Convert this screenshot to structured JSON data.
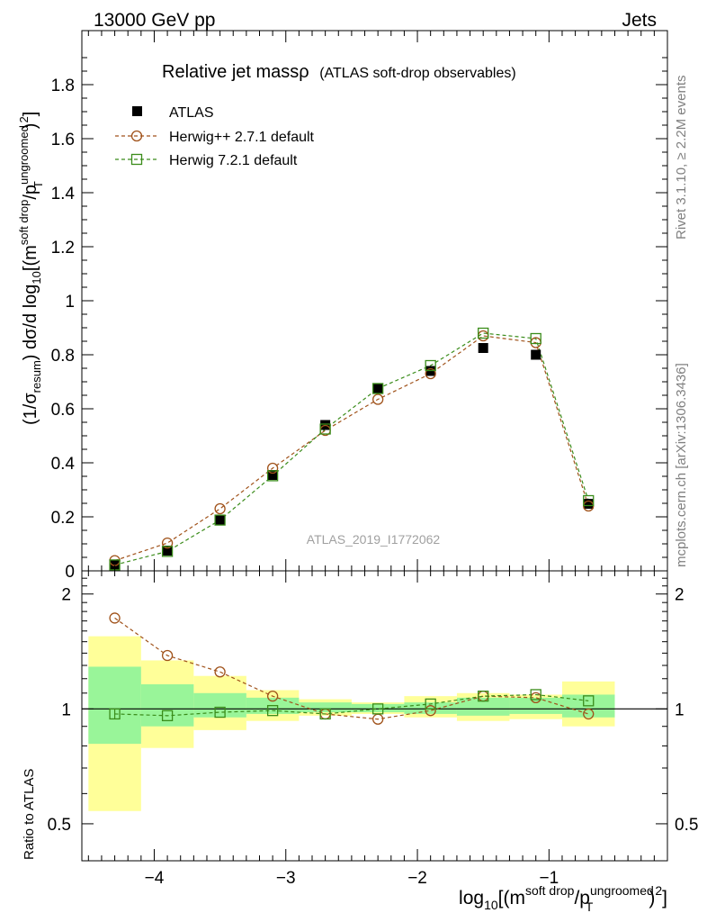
{
  "header": {
    "left": "13000 GeV pp",
    "right": "Jets"
  },
  "side_labels": {
    "rivet": "Rivet 3.1.10, ≥ 2.2M events",
    "mcplots": "mcplots.cern.ch [arXiv:1306.3436]"
  },
  "chart_data": [
    {
      "type": "scatter",
      "title": "Relative jet massρ",
      "subtitle": "(ATLAS soft-drop observables)",
      "watermark": "ATLAS_2019_I1772062",
      "ylabel": {
        "prefix": "(1/σ",
        "prefix_sub": "resum",
        "middle": ") dσ/d log",
        "log_sub": "10",
        "open": "[(m",
        "sup1": "soft drop",
        "slash": "/p",
        "sup2": "ungroomed",
        "sub2": "T",
        "close": ")",
        "exp": "2",
        "end": "]"
      },
      "ylim": [
        0,
        2
      ],
      "yticks": [
        {
          "v": 0,
          "label": "0"
        },
        {
          "v": 0.2,
          "label": "0.2"
        },
        {
          "v": 0.4,
          "label": "0.4"
        },
        {
          "v": 0.6,
          "label": "0.6"
        },
        {
          "v": 0.8,
          "label": "0.8"
        },
        {
          "v": 1,
          "label": "1"
        },
        {
          "v": 1.2,
          "label": "1.2"
        },
        {
          "v": 1.4,
          "label": "1.4"
        },
        {
          "v": 1.6,
          "label": "1.6"
        },
        {
          "v": 1.8,
          "label": "1.8"
        }
      ],
      "x": [
        -4.3,
        -3.9,
        -3.5,
        -3.1,
        -2.7,
        -2.3,
        -1.9,
        -1.5,
        -1.1,
        -0.7
      ],
      "series": [
        {
          "name": "ATLAS",
          "marker": "filled-square",
          "color": "#000000",
          "values": [
            0.022,
            0.075,
            0.19,
            0.355,
            0.54,
            0.675,
            0.74,
            0.825,
            0.8,
            0.248
          ]
        },
        {
          "name": "Herwig++ 2.7.1 default",
          "marker": "open-circle",
          "color": "#a0521a",
          "values": [
            0.038,
            0.103,
            0.23,
            0.38,
            0.52,
            0.635,
            0.73,
            0.87,
            0.845,
            0.24
          ]
        },
        {
          "name": "Herwig 7.2.1 default",
          "marker": "open-square",
          "color": "#3a8c1a",
          "values": [
            0.022,
            0.072,
            0.188,
            0.352,
            0.525,
            0.675,
            0.76,
            0.88,
            0.86,
            0.26
          ]
        }
      ]
    },
    {
      "type": "scatter",
      "ylabel": "Ratio to ATLAS",
      "xlabel": {
        "prefix": "log",
        "log_sub": "10",
        "open": "[(m",
        "sup1": "soft drop",
        "slash": "/p",
        "sup2": "ungroomed",
        "sub2": "T",
        "close": ")",
        "exp": "2",
        "end": "]"
      },
      "ylim": [
        0.4,
        2.3
      ],
      "yticks": [
        {
          "v": 0.5,
          "label": "0.5"
        },
        {
          "v": 1,
          "label": "1"
        },
        {
          "v": 2,
          "label": "2"
        }
      ],
      "xlim": [
        -4.55,
        -0.1
      ],
      "xticks": [
        {
          "v": -4,
          "label": "−4"
        },
        {
          "v": -3,
          "label": "−3"
        },
        {
          "v": -2,
          "label": "−2"
        },
        {
          "v": -1,
          "label": "−1"
        }
      ],
      "bin_edges": [
        -4.5,
        -4.1,
        -3.7,
        -3.3,
        -2.9,
        -2.5,
        -2.1,
        -1.7,
        -1.3,
        -0.9,
        -0.5
      ],
      "band_yellow": [
        [
          0.54,
          1.55
        ],
        [
          0.79,
          1.34
        ],
        [
          0.88,
          1.22
        ],
        [
          0.93,
          1.12
        ],
        [
          0.96,
          1.06
        ],
        [
          0.97,
          1.04
        ],
        [
          0.95,
          1.08
        ],
        [
          0.93,
          1.1
        ],
        [
          0.94,
          1.09
        ],
        [
          0.9,
          1.18
        ]
      ],
      "band_green": [
        [
          0.81,
          1.29
        ],
        [
          0.9,
          1.16
        ],
        [
          0.95,
          1.1
        ],
        [
          0.97,
          1.07
        ],
        [
          0.98,
          1.04
        ],
        [
          0.98,
          1.03
        ],
        [
          0.97,
          1.04
        ],
        [
          0.96,
          1.07
        ],
        [
          0.97,
          1.07
        ],
        [
          0.95,
          1.09
        ]
      ],
      "series": [
        {
          "name": "ATLAS",
          "values": [
            0.97,
            0.96,
            0.98,
            0.99,
            0.98,
            1.0,
            1.0,
            1.0,
            1.0,
            1.0
          ],
          "errors": [
            0.03,
            0.01,
            0.01,
            0.01,
            0.01,
            0.01,
            0.01,
            0.01,
            0.01,
            0.01
          ]
        },
        {
          "name": "Herwig++ 2.7.1 default",
          "color": "#a0521a",
          "values": [
            1.73,
            1.38,
            1.25,
            1.08,
            0.97,
            0.94,
            0.99,
            1.08,
            1.07,
            0.97
          ]
        },
        {
          "name": "Herwig 7.2.1 default",
          "color": "#3a8c1a",
          "values": [
            0.97,
            0.96,
            0.98,
            0.99,
            0.97,
            1.0,
            1.03,
            1.08,
            1.09,
            1.05
          ]
        }
      ]
    }
  ]
}
